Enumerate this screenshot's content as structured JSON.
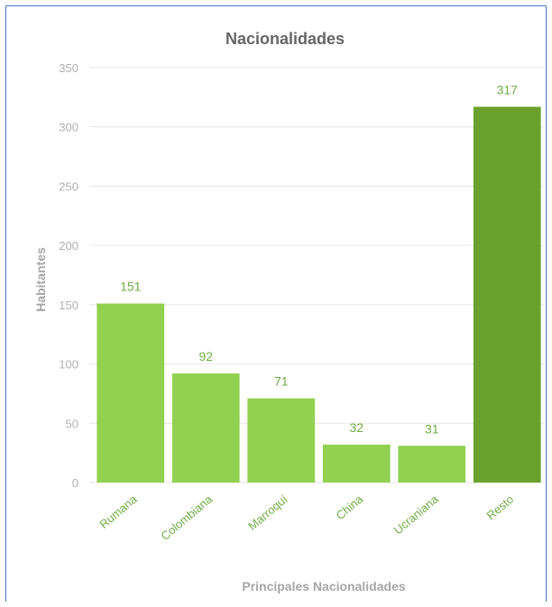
{
  "colors": {
    "bar_light": "#92d050",
    "bar_dark": "#6aa12c",
    "label_green": "#70ad47",
    "grid": "#e6e6e6",
    "frame": "#4a77c9"
  },
  "chart_data": {
    "type": "bar",
    "title": "Nacionalidades",
    "xlabel": "Principales Nacionalidades",
    "ylabel": "Habitantes",
    "categories": [
      "Rumana",
      "Colombiana",
      "Marroquí",
      "China",
      "Ucraniana",
      "Resto"
    ],
    "values": [
      151,
      92,
      71,
      32,
      31,
      317
    ],
    "highlight": [
      false,
      false,
      false,
      false,
      false,
      true
    ],
    "ylim": [
      0,
      350
    ],
    "yticks": [
      "0",
      "50",
      "100",
      "150",
      "200",
      "250",
      "300",
      "350"
    ],
    "grid": true,
    "legend": "none"
  }
}
